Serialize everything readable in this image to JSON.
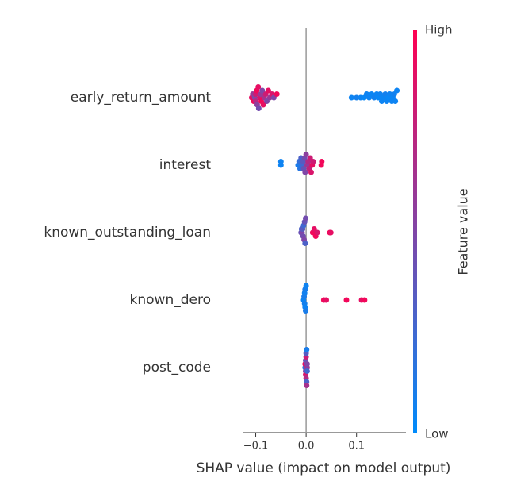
{
  "chart_data": {
    "type": "beeswarm",
    "xlabel": "SHAP value (impact on model output)",
    "xlim": [
      -0.126,
      0.198
    ],
    "xticks": [
      {
        "value": -0.1,
        "label": "−0.1"
      },
      {
        "value": 0,
        "label": "0.0"
      },
      0.1
    ],
    "colorbar": {
      "label": "Feature value",
      "high": "High",
      "low": "Low",
      "colors": [
        "#008bfb",
        "#ff0052"
      ]
    },
    "features": [
      {
        "name": "early_return_amount",
        "shap": [
          -0.108,
          -0.106,
          -0.104,
          -0.102,
          -0.1,
          -0.1,
          -0.098,
          -0.097,
          -0.095,
          -0.094,
          -0.092,
          -0.09,
          -0.089,
          -0.087,
          -0.085,
          -0.083,
          -0.08,
          -0.078,
          -0.075,
          -0.072,
          -0.068,
          -0.064,
          -0.058,
          0.09,
          0.1,
          0.108,
          0.115,
          0.12,
          0.125,
          0.13,
          0.135,
          0.14,
          0.143,
          0.147,
          0.15,
          0.153,
          0.157,
          0.16,
          0.163,
          0.166,
          0.17,
          0.172,
          0.175,
          0.177,
          0.18
        ],
        "feature_value": [
          0.9,
          0.6,
          0.95,
          0.5,
          0.8,
          0.7,
          0.95,
          0.55,
          0.9,
          0.45,
          0.85,
          0.6,
          0.95,
          0.5,
          0.9,
          0.65,
          0.8,
          0.5,
          0.9,
          0.6,
          0.85,
          0.5,
          0.95,
          0.05,
          0.08,
          0.05,
          0.03,
          0.06,
          0.05,
          0.04,
          0.07,
          0.05,
          0.03,
          0.06,
          0.05,
          0.04,
          0.08,
          0.05,
          0.03,
          0.06,
          0.05,
          0.04,
          0.07,
          0.05,
          0.05
        ]
      },
      {
        "name": "interest",
        "shap": [
          -0.05,
          -0.05,
          -0.016,
          -0.014,
          -0.012,
          -0.01,
          -0.008,
          -0.006,
          -0.005,
          -0.003,
          -0.002,
          0,
          0.002,
          0.004,
          0.006,
          0.008,
          0.01,
          0.012,
          0.014,
          0.03,
          0.031
        ],
        "feature_value": [
          0.05,
          0.06,
          0.1,
          0.2,
          0.15,
          0.3,
          0.25,
          0.35,
          0.4,
          0.45,
          0.5,
          0.55,
          0.6,
          0.7,
          0.75,
          0.8,
          0.85,
          0.9,
          0.8,
          0.95,
          0.95
        ]
      },
      {
        "name": "known_outstanding_loan",
        "shap": [
          -0.01,
          -0.009,
          -0.008,
          -0.007,
          -0.006,
          -0.005,
          -0.004,
          -0.003,
          -0.002,
          -0.001,
          0.013,
          0.016,
          0.019,
          0.022,
          0.047,
          0.049
        ],
        "feature_value": [
          0.4,
          0.3,
          0.5,
          0.35,
          0.45,
          0.25,
          0.5,
          0.4,
          0.3,
          0.45,
          0.95,
          0.9,
          0.95,
          0.85,
          0.95,
          0.9
        ]
      },
      {
        "name": "known_dero",
        "shap": [
          -0.005,
          -0.004,
          -0.003,
          -0.002,
          -0.001,
          0,
          -0.003,
          -0.002,
          0.035,
          0.04,
          0.08,
          0.11,
          0.116
        ],
        "feature_value": [
          0.05,
          0.1,
          0.08,
          0.05,
          0.1,
          0.06,
          0.07,
          0.09,
          0.95,
          0.9,
          0.95,
          0.9,
          0.95
        ]
      },
      {
        "name": "post_code",
        "shap": [
          -0.002,
          -0.001,
          0,
          0.001,
          0.002,
          -0.002,
          -0.001,
          0,
          0.001,
          0.002,
          -0.001,
          0,
          0.001,
          0.002
        ],
        "feature_value": [
          0.2,
          0.5,
          0.8,
          0.3,
          0.6,
          0.9,
          0.4,
          0.7,
          0.1,
          0.5,
          0.85,
          0.35,
          0.65,
          0.25
        ]
      }
    ]
  }
}
